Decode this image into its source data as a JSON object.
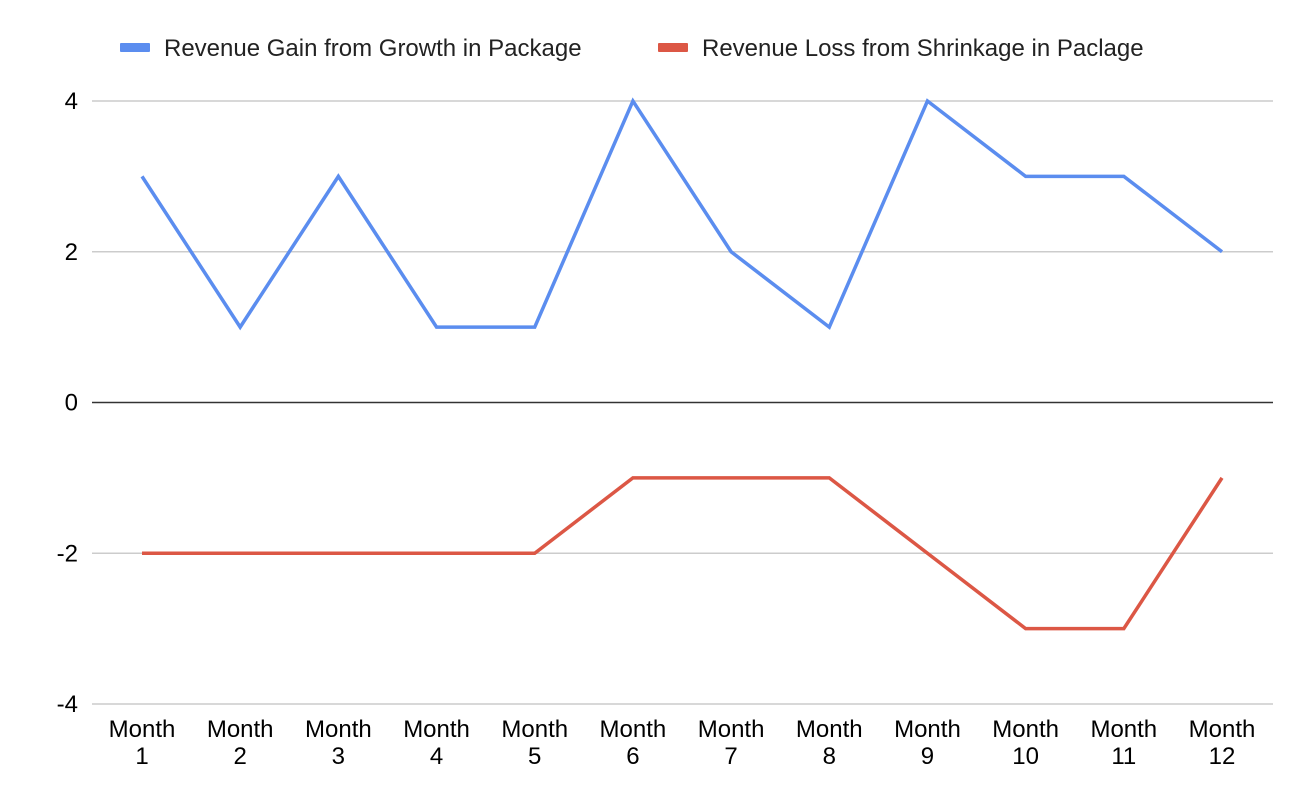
{
  "chart_data": {
    "type": "line",
    "title": "",
    "xlabel": "",
    "ylabel": "",
    "categories": [
      [
        "Month",
        "1"
      ],
      [
        "Month",
        "2"
      ],
      [
        "Month",
        "3"
      ],
      [
        "Month",
        "4"
      ],
      [
        "Month",
        "5"
      ],
      [
        "Month",
        "6"
      ],
      [
        "Month",
        "7"
      ],
      [
        "Month",
        "8"
      ],
      [
        "Month",
        "9"
      ],
      [
        "Month",
        "10"
      ],
      [
        "Month",
        "11"
      ],
      [
        "Month",
        "12"
      ]
    ],
    "ylim": [
      -4,
      4
    ],
    "yticks": [
      4,
      2,
      0,
      -2,
      -4
    ],
    "grid": true,
    "legend_position": "top",
    "series": [
      {
        "name": "Revenue Gain from Growth in Package",
        "color": "#5b8def",
        "values": [
          3,
          1,
          3,
          1,
          1,
          4,
          2,
          1,
          4,
          3,
          3,
          2
        ]
      },
      {
        "name": "Revenue Loss from Shrinkage in Paclage",
        "color": "#dc5745",
        "values": [
          -2,
          -2,
          -2,
          -2,
          -2,
          -1,
          -1,
          -1,
          -2,
          -3,
          -3,
          -1
        ]
      }
    ]
  }
}
